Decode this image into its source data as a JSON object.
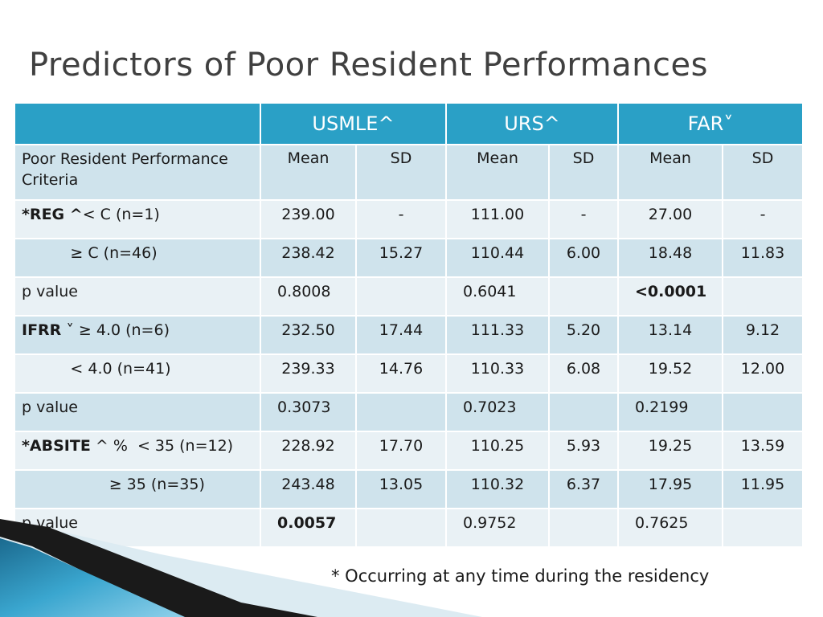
{
  "slide": {
    "title": "Predictors of Poor Resident Performances",
    "footnote": "* Occurring at any time during the residency"
  },
  "table": {
    "groups": [
      "USMLE^",
      "URS^",
      "FAR˅"
    ],
    "criteria_header": "Poor Resident Performance Criteria",
    "stat_headers": [
      "Mean",
      "SD",
      "Mean",
      "SD",
      "Mean",
      "SD"
    ],
    "rows": [
      {
        "label_bold": "*REG ^",
        "label": "< C (n=1)",
        "cells": [
          "239.00",
          "-",
          "111.00",
          "-",
          "27.00",
          "-"
        ]
      },
      {
        "label_bold": "",
        "label": "          ≥ C (n=46)",
        "cells": [
          "238.42",
          "15.27",
          "110.44",
          "6.00",
          "18.48",
          "11.83"
        ]
      },
      {
        "label_bold": "",
        "label": "p value",
        "cells": [
          "0.8008",
          "",
          "0.6041",
          "",
          "<0.0001",
          ""
        ]
      },
      {
        "label_bold": "IFRR",
        "label": " ˅ ≥ 4.0 (n=6)",
        "cells": [
          "232.50",
          "17.44",
          "111.33",
          "5.20",
          "13.14",
          "9.12"
        ]
      },
      {
        "label_bold": "",
        "label": "          < 4.0 (n=41)",
        "cells": [
          "239.33",
          "14.76",
          "110.33",
          "6.08",
          "19.52",
          "12.00"
        ]
      },
      {
        "label_bold": "",
        "label": "p value",
        "cells": [
          "0.3073",
          "",
          "0.7023",
          "",
          "0.2199",
          ""
        ]
      },
      {
        "label_bold": "*ABSITE",
        "label": " ^ %  < 35 (n=12)",
        "cells": [
          "228.92",
          "17.70",
          "110.25",
          "5.93",
          "19.25",
          "13.59"
        ]
      },
      {
        "label_bold": "",
        "label": "                  ≥ 35 (n=35)",
        "cells": [
          "243.48",
          "13.05",
          "110.32",
          "6.37",
          "17.95",
          "11.95"
        ]
      },
      {
        "label_bold": "",
        "label": "p value",
        "cells": [
          "0.0057",
          "",
          "0.9752",
          "",
          "0.7625",
          ""
        ]
      }
    ]
  },
  "colors": {
    "header": "#2aa0c6",
    "row_light": "#e9f1f5",
    "row_dark": "#cfe3ec",
    "title_text": "#404040"
  }
}
